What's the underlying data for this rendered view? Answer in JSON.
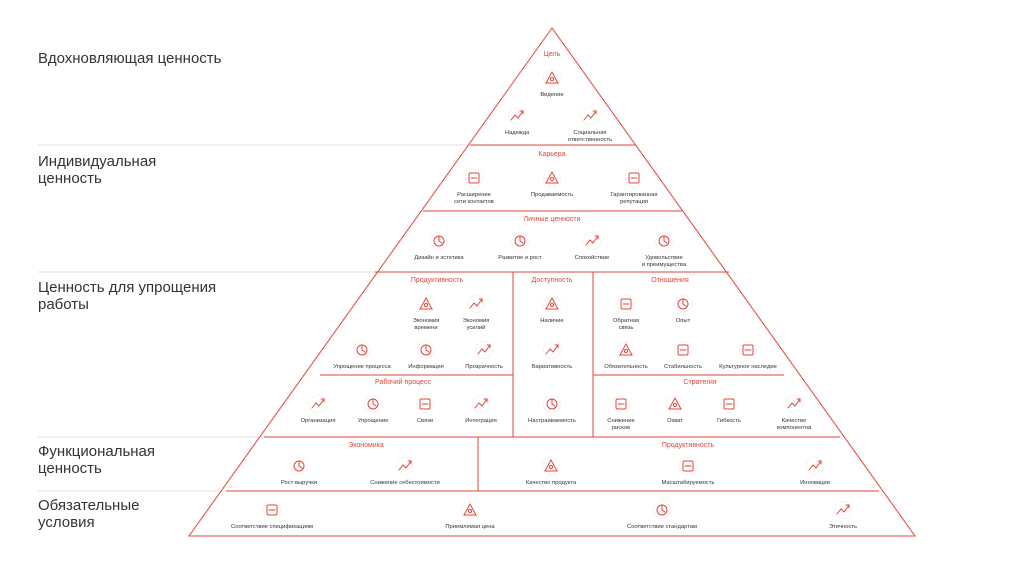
{
  "accent_color": "#e0453b",
  "tiers": [
    {
      "label": "Вдохновляющая ценность"
    },
    {
      "label": "Индивидуальная\nценность"
    },
    {
      "label": "Ценность для упрощения\nработы"
    },
    {
      "label": "Функциональная\nценность"
    },
    {
      "label": "Обязательные\nусловия"
    }
  ],
  "sections": {
    "goal": {
      "title": "Цель",
      "items": [
        {
          "label": "Видение",
          "icon": "telescope-icon"
        },
        {
          "label": "Надежда",
          "icon": "ribbon-icon"
        },
        {
          "label": "Социальная\nответственность",
          "icon": "hand-heart-icon"
        }
      ]
    },
    "career": {
      "title": "Карьера",
      "items": [
        {
          "label": "Расширение\nсети контактов",
          "icon": "network-icon"
        },
        {
          "label": "Продаваемость",
          "icon": "phone-icon"
        },
        {
          "label": "Гарантированная\nрепутация",
          "icon": "certificate-icon"
        }
      ]
    },
    "personal": {
      "title": "Личные ценности",
      "items": [
        {
          "label": "Дизайн и эстетика",
          "icon": "design-tools-icon"
        },
        {
          "label": "Развитие и рост",
          "icon": "growth-chart-icon"
        },
        {
          "label": "Спокойствие",
          "icon": "meditation-icon"
        },
        {
          "label": "Удовольствие\nи преимущества",
          "icon": "gift-bag-icon"
        }
      ]
    },
    "productivity": {
      "title": "Продуктивность",
      "items": [
        {
          "label": "Экономия\nвремени",
          "icon": "hourglass-icon"
        },
        {
          "label": "Экономия\nусилий",
          "icon": "people-icon"
        },
        {
          "label": "Упрощение процесса",
          "icon": "path-icon"
        },
        {
          "label": "Информация",
          "icon": "info-icon"
        },
        {
          "label": "Прозрачность",
          "icon": "window-icon"
        }
      ]
    },
    "access": {
      "title": "Доступность",
      "items": [
        {
          "label": "Наличие",
          "icon": "store-icon"
        },
        {
          "label": "Вариативность",
          "icon": "shapes-icon"
        },
        {
          "label": "Настраиваемость",
          "icon": "gear-icon"
        }
      ]
    },
    "relations": {
      "title": "Отношения",
      "items": [
        {
          "label": "Обратная\nсвязь",
          "icon": "refresh-icon"
        },
        {
          "label": "Опыт",
          "icon": "lamp-icon"
        },
        {
          "label": "Обязательность",
          "icon": "handshake-icon"
        },
        {
          "label": "Стабильность",
          "icon": "balance-icon"
        },
        {
          "label": "Культурное наследие",
          "icon": "culture-icon"
        }
      ]
    },
    "workflow": {
      "title": "Рабочий процесс",
      "items": [
        {
          "label": "Организация",
          "icon": "folder-icon"
        },
        {
          "label": "Упрощение",
          "icon": "building-icon"
        },
        {
          "label": "Связи",
          "icon": "connections-icon"
        },
        {
          "label": "Интеграция",
          "icon": "puzzle-icon"
        }
      ]
    },
    "strategy": {
      "title": "Стратегия",
      "items": [
        {
          "label": "Снижение\nрисков",
          "icon": "shield-grid-icon"
        },
        {
          "label": "Охват",
          "icon": "tower-icon"
        },
        {
          "label": "Гибкость",
          "icon": "fan-icon"
        },
        {
          "label": "Качество\nкомпонентов",
          "icon": "layers-icon"
        }
      ]
    },
    "economy": {
      "title": "Экономика",
      "items": [
        {
          "label": "Рост выручки",
          "icon": "coins-up-icon"
        },
        {
          "label": "Снижение себестоимости",
          "icon": "coins-down-icon"
        }
      ]
    },
    "func_productivity": {
      "title": "Продуктивность",
      "items": [
        {
          "label": "Качество продукта",
          "icon": "thumbs-up-icon"
        },
        {
          "label": "Масштабируемость",
          "icon": "scale-boxes-icon"
        },
        {
          "label": "Инновации",
          "icon": "rocket-icon"
        }
      ]
    },
    "mandatory": {
      "items": [
        {
          "label": "Соответствие спецификациям",
          "icon": "check-badge-icon"
        },
        {
          "label": "Приемлемая цена",
          "icon": "price-tag-icon"
        },
        {
          "label": "Соответствие стандартам",
          "icon": "document-icon"
        },
        {
          "label": "Этичность",
          "icon": "ethics-icon"
        }
      ]
    }
  }
}
